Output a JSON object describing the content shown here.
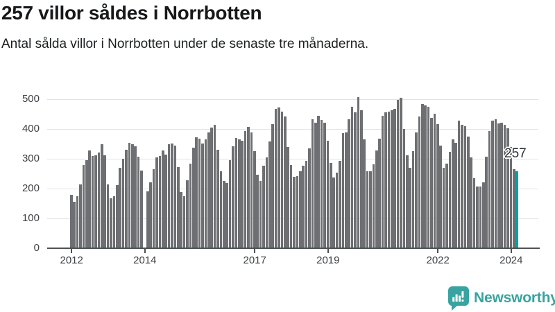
{
  "header": {
    "title": "257 villor såldes i Norrbotten",
    "subtitle": "Antal sålda villor i Norrbotten under de senaste tre månaderna."
  },
  "chart_data": {
    "type": "bar",
    "title": "257 villor såldes i Norrbotten",
    "subtitle": "Antal sålda villor i Norrbotten under de senaste tre månaderna.",
    "xlabel": "",
    "ylabel": "",
    "frequency": "monthly",
    "start_month": "2012-01",
    "end_month": "2024-03",
    "ylim": [
      0,
      500
    ],
    "grid": true,
    "legend": "none",
    "y_ticks": [
      0,
      100,
      200,
      300,
      400,
      500
    ],
    "x_ticks": [
      {
        "label": "2012",
        "month_index": 0
      },
      {
        "label": "2014",
        "month_index": 24
      },
      {
        "label": "2017",
        "month_index": 60
      },
      {
        "label": "2019",
        "month_index": 84
      },
      {
        "label": "2022",
        "month_index": 120
      },
      {
        "label": "2024",
        "month_index": 144
      }
    ],
    "values": [
      180,
      155,
      175,
      215,
      280,
      296,
      328,
      309,
      312,
      322,
      350,
      312,
      215,
      167,
      174,
      211,
      270,
      301,
      330,
      353,
      349,
      341,
      308,
      260,
      null,
      190,
      220,
      265,
      305,
      310,
      327,
      315,
      349,
      352,
      345,
      271,
      188,
      174,
      229,
      284,
      337,
      372,
      368,
      351,
      364,
      388,
      405,
      415,
      330,
      257,
      226,
      218,
      296,
      343,
      370,
      364,
      360,
      393,
      406,
      389,
      325,
      246,
      226,
      277,
      304,
      358,
      417,
      468,
      473,
      457,
      441,
      339,
      280,
      239,
      243,
      257,
      277,
      292,
      336,
      432,
      422,
      444,
      430,
      422,
      361,
      286,
      238,
      253,
      292,
      387,
      389,
      432,
      475,
      455,
      506,
      463,
      364,
      259,
      258,
      281,
      327,
      368,
      445,
      455,
      457,
      463,
      467,
      498,
      504,
      401,
      312,
      269,
      325,
      389,
      441,
      483,
      480,
      475,
      437,
      451,
      417,
      344,
      270,
      283,
      323,
      366,
      354,
      428,
      413,
      409,
      374,
      304,
      234,
      208,
      208,
      222,
      308,
      392,
      428,
      432,
      418,
      422,
      415,
      403,
      340,
      265,
      257
    ],
    "highlight_index": 146,
    "annotation": {
      "text": "257",
      "target_index": 146
    },
    "colors": {
      "bar": "#6e6f72",
      "highlight": "#00a2a1",
      "grid": "#e2e2e2",
      "axis": "#4d5154",
      "tick_text": "#3d4145"
    }
  },
  "footer": {
    "brand": "Newsworthy",
    "icon": "newsworthy-chart-bubble-icon",
    "brand_color": "#38a3a0"
  }
}
